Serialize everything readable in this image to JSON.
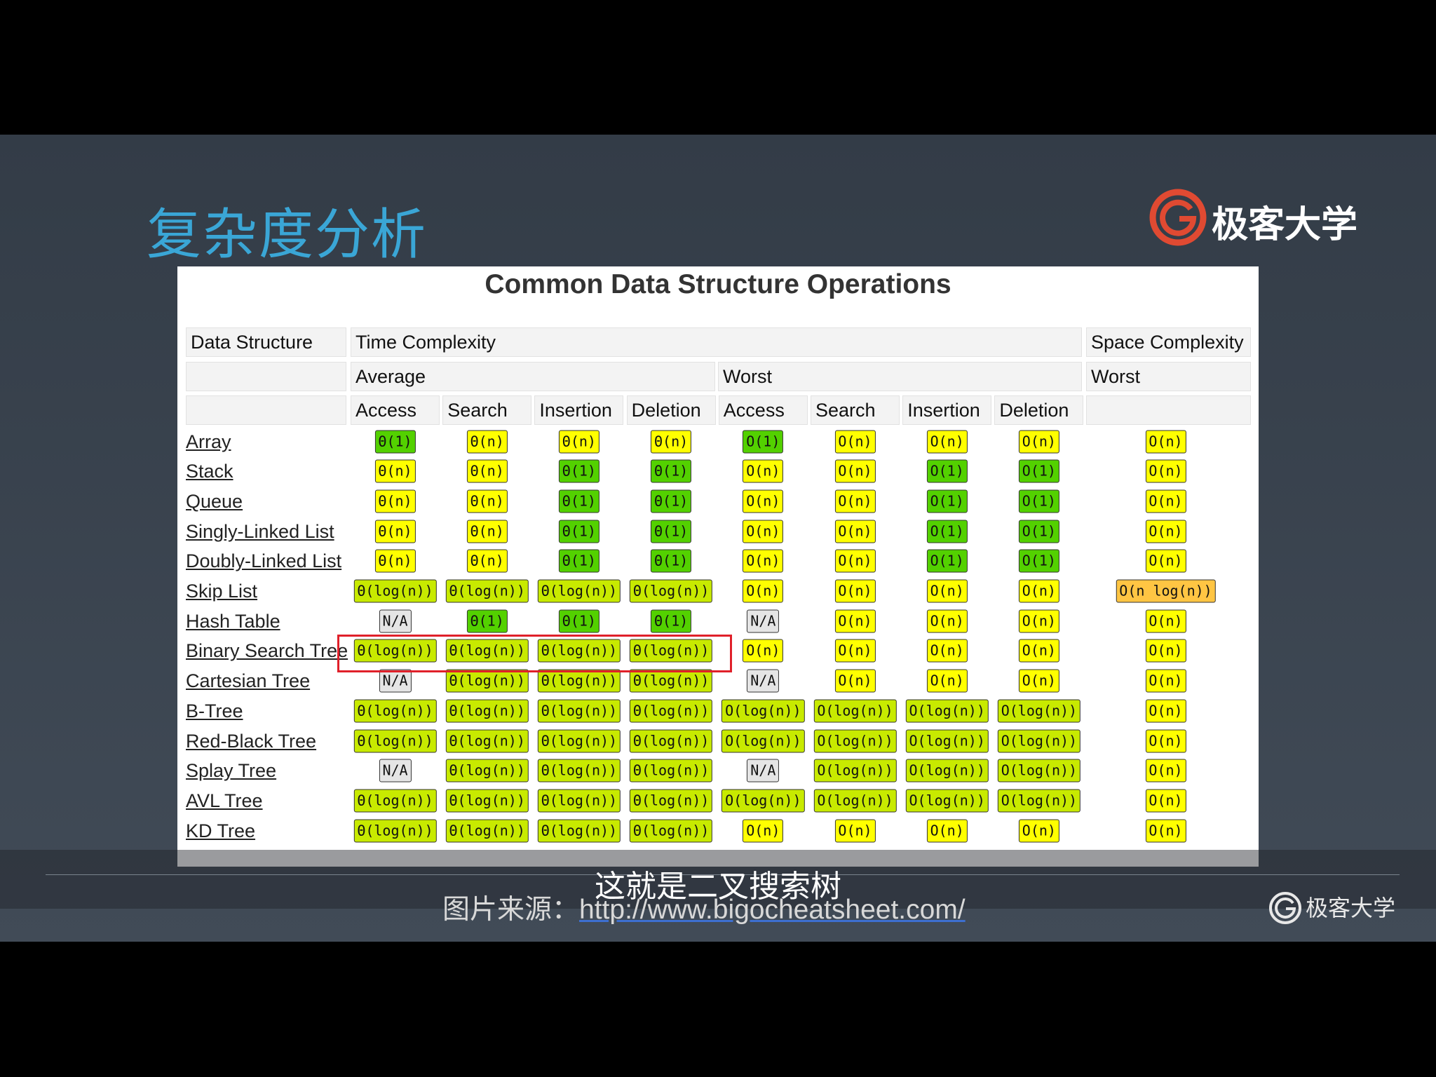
{
  "slide": {
    "title": "复杂度分析",
    "logo": "极客大学"
  },
  "table": {
    "title": "Common Data Structure Operations",
    "group_headers": [
      "Data Structure",
      "Time Complexity",
      "Space Complexity"
    ],
    "sub_headers": [
      "Average",
      "Worst",
      "Worst"
    ],
    "operations": [
      "Access",
      "Search",
      "Insertion",
      "Deletion",
      "Access",
      "Search",
      "Insertion",
      "Deletion"
    ],
    "rows": [
      {
        "name": "Array",
        "cells": [
          {
            "text": "Θ(1)",
            "color": "#53d100"
          },
          {
            "text": "Θ(n)",
            "color": "#ffff00"
          },
          {
            "text": "Θ(n)",
            "color": "#ffff00"
          },
          {
            "text": "Θ(n)",
            "color": "#ffff00"
          },
          {
            "text": "O(1)",
            "color": "#53d100"
          },
          {
            "text": "O(n)",
            "color": "#ffff00"
          },
          {
            "text": "O(n)",
            "color": "#ffff00"
          },
          {
            "text": "O(n)",
            "color": "#ffff00"
          },
          {
            "text": "O(n)",
            "color": "#ffff00"
          }
        ]
      },
      {
        "name": "Stack",
        "cells": [
          {
            "text": "Θ(n)",
            "color": "#ffff00"
          },
          {
            "text": "Θ(n)",
            "color": "#ffff00"
          },
          {
            "text": "Θ(1)",
            "color": "#53d100"
          },
          {
            "text": "Θ(1)",
            "color": "#53d100"
          },
          {
            "text": "O(n)",
            "color": "#ffff00"
          },
          {
            "text": "O(n)",
            "color": "#ffff00"
          },
          {
            "text": "O(1)",
            "color": "#53d100"
          },
          {
            "text": "O(1)",
            "color": "#53d100"
          },
          {
            "text": "O(n)",
            "color": "#ffff00"
          }
        ]
      },
      {
        "name": "Queue",
        "cells": [
          {
            "text": "Θ(n)",
            "color": "#ffff00"
          },
          {
            "text": "Θ(n)",
            "color": "#ffff00"
          },
          {
            "text": "Θ(1)",
            "color": "#53d100"
          },
          {
            "text": "Θ(1)",
            "color": "#53d100"
          },
          {
            "text": "O(n)",
            "color": "#ffff00"
          },
          {
            "text": "O(n)",
            "color": "#ffff00"
          },
          {
            "text": "O(1)",
            "color": "#53d100"
          },
          {
            "text": "O(1)",
            "color": "#53d100"
          },
          {
            "text": "O(n)",
            "color": "#ffff00"
          }
        ]
      },
      {
        "name": "Singly-Linked List",
        "cells": [
          {
            "text": "Θ(n)",
            "color": "#ffff00"
          },
          {
            "text": "Θ(n)",
            "color": "#ffff00"
          },
          {
            "text": "Θ(1)",
            "color": "#53d100"
          },
          {
            "text": "Θ(1)",
            "color": "#53d100"
          },
          {
            "text": "O(n)",
            "color": "#ffff00"
          },
          {
            "text": "O(n)",
            "color": "#ffff00"
          },
          {
            "text": "O(1)",
            "color": "#53d100"
          },
          {
            "text": "O(1)",
            "color": "#53d100"
          },
          {
            "text": "O(n)",
            "color": "#ffff00"
          }
        ]
      },
      {
        "name": "Doubly-Linked List",
        "cells": [
          {
            "text": "Θ(n)",
            "color": "#ffff00"
          },
          {
            "text": "Θ(n)",
            "color": "#ffff00"
          },
          {
            "text": "Θ(1)",
            "color": "#53d100"
          },
          {
            "text": "Θ(1)",
            "color": "#53d100"
          },
          {
            "text": "O(n)",
            "color": "#ffff00"
          },
          {
            "text": "O(n)",
            "color": "#ffff00"
          },
          {
            "text": "O(1)",
            "color": "#53d100"
          },
          {
            "text": "O(1)",
            "color": "#53d100"
          },
          {
            "text": "O(n)",
            "color": "#ffff00"
          }
        ]
      },
      {
        "name": "Skip List",
        "cells": [
          {
            "text": "Θ(log(n))",
            "color": "#c8ea00"
          },
          {
            "text": "Θ(log(n))",
            "color": "#c8ea00"
          },
          {
            "text": "Θ(log(n))",
            "color": "#c8ea00"
          },
          {
            "text": "Θ(log(n))",
            "color": "#c8ea00"
          },
          {
            "text": "O(n)",
            "color": "#ffff00"
          },
          {
            "text": "O(n)",
            "color": "#ffff00"
          },
          {
            "text": "O(n)",
            "color": "#ffff00"
          },
          {
            "text": "O(n)",
            "color": "#ffff00"
          },
          {
            "text": "O(n log(n))",
            "color": "#ffc543"
          }
        ]
      },
      {
        "name": "Hash Table",
        "cells": [
          {
            "text": "N/A",
            "color": "#e5e5e5"
          },
          {
            "text": "Θ(1)",
            "color": "#53d100"
          },
          {
            "text": "Θ(1)",
            "color": "#53d100"
          },
          {
            "text": "Θ(1)",
            "color": "#53d100"
          },
          {
            "text": "N/A",
            "color": "#e5e5e5"
          },
          {
            "text": "O(n)",
            "color": "#ffff00"
          },
          {
            "text": "O(n)",
            "color": "#ffff00"
          },
          {
            "text": "O(n)",
            "color": "#ffff00"
          },
          {
            "text": "O(n)",
            "color": "#ffff00"
          }
        ]
      },
      {
        "name": "Binary Search Tree",
        "cells": [
          {
            "text": "Θ(log(n))",
            "color": "#c8ea00"
          },
          {
            "text": "Θ(log(n))",
            "color": "#c8ea00"
          },
          {
            "text": "Θ(log(n))",
            "color": "#c8ea00"
          },
          {
            "text": "Θ(log(n))",
            "color": "#c8ea00"
          },
          {
            "text": "O(n)",
            "color": "#ffff00"
          },
          {
            "text": "O(n)",
            "color": "#ffff00"
          },
          {
            "text": "O(n)",
            "color": "#ffff00"
          },
          {
            "text": "O(n)",
            "color": "#ffff00"
          },
          {
            "text": "O(n)",
            "color": "#ffff00"
          }
        ]
      },
      {
        "name": "Cartesian Tree",
        "cells": [
          {
            "text": "N/A",
            "color": "#e5e5e5"
          },
          {
            "text": "Θ(log(n))",
            "color": "#c8ea00"
          },
          {
            "text": "Θ(log(n))",
            "color": "#c8ea00"
          },
          {
            "text": "Θ(log(n))",
            "color": "#c8ea00"
          },
          {
            "text": "N/A",
            "color": "#e5e5e5"
          },
          {
            "text": "O(n)",
            "color": "#ffff00"
          },
          {
            "text": "O(n)",
            "color": "#ffff00"
          },
          {
            "text": "O(n)",
            "color": "#ffff00"
          },
          {
            "text": "O(n)",
            "color": "#ffff00"
          }
        ]
      },
      {
        "name": "B-Tree",
        "cells": [
          {
            "text": "Θ(log(n))",
            "color": "#c8ea00"
          },
          {
            "text": "Θ(log(n))",
            "color": "#c8ea00"
          },
          {
            "text": "Θ(log(n))",
            "color": "#c8ea00"
          },
          {
            "text": "Θ(log(n))",
            "color": "#c8ea00"
          },
          {
            "text": "O(log(n))",
            "color": "#c8ea00"
          },
          {
            "text": "O(log(n))",
            "color": "#c8ea00"
          },
          {
            "text": "O(log(n))",
            "color": "#c8ea00"
          },
          {
            "text": "O(log(n))",
            "color": "#c8ea00"
          },
          {
            "text": "O(n)",
            "color": "#ffff00"
          }
        ]
      },
      {
        "name": "Red-Black Tree",
        "cells": [
          {
            "text": "Θ(log(n))",
            "color": "#c8ea00"
          },
          {
            "text": "Θ(log(n))",
            "color": "#c8ea00"
          },
          {
            "text": "Θ(log(n))",
            "color": "#c8ea00"
          },
          {
            "text": "Θ(log(n))",
            "color": "#c8ea00"
          },
          {
            "text": "O(log(n))",
            "color": "#c8ea00"
          },
          {
            "text": "O(log(n))",
            "color": "#c8ea00"
          },
          {
            "text": "O(log(n))",
            "color": "#c8ea00"
          },
          {
            "text": "O(log(n))",
            "color": "#c8ea00"
          },
          {
            "text": "O(n)",
            "color": "#ffff00"
          }
        ]
      },
      {
        "name": "Splay Tree",
        "cells": [
          {
            "text": "N/A",
            "color": "#e5e5e5"
          },
          {
            "text": "Θ(log(n))",
            "color": "#c8ea00"
          },
          {
            "text": "Θ(log(n))",
            "color": "#c8ea00"
          },
          {
            "text": "Θ(log(n))",
            "color": "#c8ea00"
          },
          {
            "text": "N/A",
            "color": "#e5e5e5"
          },
          {
            "text": "O(log(n))",
            "color": "#c8ea00"
          },
          {
            "text": "O(log(n))",
            "color": "#c8ea00"
          },
          {
            "text": "O(log(n))",
            "color": "#c8ea00"
          },
          {
            "text": "O(n)",
            "color": "#ffff00"
          }
        ]
      },
      {
        "name": "AVL Tree",
        "cells": [
          {
            "text": "Θ(log(n))",
            "color": "#c8ea00"
          },
          {
            "text": "Θ(log(n))",
            "color": "#c8ea00"
          },
          {
            "text": "Θ(log(n))",
            "color": "#c8ea00"
          },
          {
            "text": "Θ(log(n))",
            "color": "#c8ea00"
          },
          {
            "text": "O(log(n))",
            "color": "#c8ea00"
          },
          {
            "text": "O(log(n))",
            "color": "#c8ea00"
          },
          {
            "text": "O(log(n))",
            "color": "#c8ea00"
          },
          {
            "text": "O(log(n))",
            "color": "#c8ea00"
          },
          {
            "text": "O(n)",
            "color": "#ffff00"
          }
        ]
      },
      {
        "name": "KD Tree",
        "cells": [
          {
            "text": "Θ(log(n))",
            "color": "#c8ea00"
          },
          {
            "text": "Θ(log(n))",
            "color": "#c8ea00"
          },
          {
            "text": "Θ(log(n))",
            "color": "#c8ea00"
          },
          {
            "text": "Θ(log(n))",
            "color": "#c8ea00"
          },
          {
            "text": "O(n)",
            "color": "#ffff00"
          },
          {
            "text": "O(n)",
            "color": "#ffff00"
          },
          {
            "text": "O(n)",
            "color": "#ffff00"
          },
          {
            "text": "O(n)",
            "color": "#ffff00"
          },
          {
            "text": "O(n)",
            "color": "#ffff00"
          }
        ]
      }
    ]
  },
  "caption": {
    "subtitle": "这就是二叉搜索树",
    "source_label": "图片来源：",
    "source_url": "http://www.bigocheatsheet.com/",
    "logo": "极客大学"
  }
}
